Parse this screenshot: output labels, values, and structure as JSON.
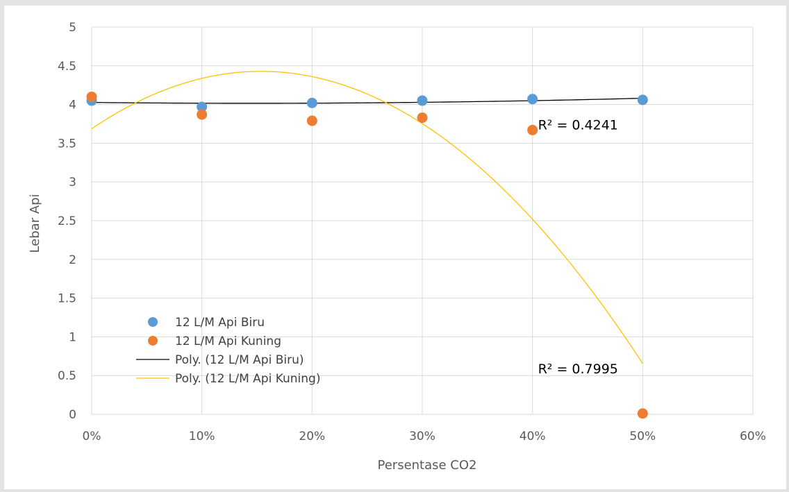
{
  "chart_data": {
    "type": "scatter",
    "title": "",
    "xlabel": "Persentase CO2",
    "ylabel": "Lebar Api",
    "xlim": [
      0,
      0.6
    ],
    "ylim": [
      0,
      5
    ],
    "x_ticks": [
      0,
      0.1,
      0.2,
      0.3,
      0.4,
      0.5,
      0.6
    ],
    "x_tick_labels": [
      "0%",
      "10%",
      "20%",
      "30%",
      "40%",
      "50%",
      "60%"
    ],
    "y_ticks": [
      0,
      0.5,
      1,
      1.5,
      2,
      2.5,
      3,
      3.5,
      4,
      4.5,
      5
    ],
    "y_tick_labels": [
      "0",
      "0.5",
      "1",
      "1.5",
      "2",
      "2.5",
      "3",
      "3.5",
      "4",
      "4.5",
      "5"
    ],
    "grid": true,
    "legend_position": "bottom-left",
    "series": [
      {
        "name": "12 L/M Api Biru",
        "color": "#5b9bd5",
        "x": [
          0,
          0.1,
          0.2,
          0.3,
          0.4,
          0.5
        ],
        "y": [
          4.05,
          3.97,
          4.02,
          4.05,
          4.07,
          4.06
        ]
      },
      {
        "name": "12 L/M Api Kuning",
        "color": "#ed7d31",
        "x": [
          0,
          0.1,
          0.2,
          0.3,
          0.4,
          0.5
        ],
        "y": [
          4.1,
          3.87,
          3.79,
          3.83,
          3.67,
          0.01
        ]
      }
    ],
    "trendlines": [
      {
        "name": "Poly. (12 L/M Api Biru)",
        "color": "#000000",
        "x": [
          0,
          0.1,
          0.2,
          0.3,
          0.4,
          0.5
        ],
        "y": [
          4.03,
          4.01,
          4.02,
          4.03,
          4.05,
          4.08
        ],
        "r2_label": "R² = 0.4241",
        "r2_anchor": [
          0.405,
          3.68
        ]
      },
      {
        "name": "Poly. (12 L/M Api Kuning)",
        "color": "#ffc000",
        "x": [
          0,
          0.05,
          0.1,
          0.15,
          0.2,
          0.25,
          0.3,
          0.35,
          0.4,
          0.45,
          0.5
        ],
        "y": [
          3.67,
          4.13,
          4.34,
          4.41,
          4.33,
          4.13,
          3.77,
          3.24,
          2.52,
          1.66,
          0.65
        ],
        "r2_label": "R² = 0.7995",
        "r2_anchor": [
          0.405,
          0.53
        ]
      }
    ]
  }
}
